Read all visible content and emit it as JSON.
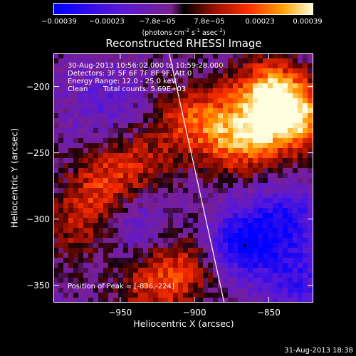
{
  "chart_data": {
    "type": "heatmap",
    "title": "Reconstructed RHESSI Image",
    "xlabel": "Heliocentric X (arcsec)",
    "ylabel": "Heliocentric Y (arcsec)",
    "xlim": [
      -995,
      -820
    ],
    "ylim": [
      -363,
      -175
    ],
    "xticks": [
      "-950",
      "-900",
      "-850"
    ],
    "xtick_values": [
      -950,
      -900,
      -850
    ],
    "yticks": [
      "-200",
      "-250",
      "-300",
      "-350"
    ],
    "ytick_values": [
      -200,
      -250,
      -300,
      -350
    ],
    "colorbar": {
      "range": [
        -0.00039,
        0.00039
      ],
      "tick_labels": [
        "-0.00039",
        "-0.00023",
        "-7.8e-05",
        "7.8e-05",
        "0.00023",
        "0.00039"
      ],
      "tick_values": [
        -0.00039,
        -0.00023,
        -7.8e-05,
        7.8e-05,
        0.00023,
        0.00039
      ],
      "units_prefix": "(photons cm",
      "units_exp1": "-2",
      "units_mid1": " s",
      "units_exp2": "-1",
      "units_mid2": " asec",
      "units_exp3": "-2",
      "units_suffix": ")"
    },
    "annotations": {
      "time_range": "30-Aug-2013 10:56:02.000 to 10:59:28.000",
      "detectors": "Detectors: 3F 5F 6F 7F 8F 9F, Att 0",
      "energy": "Energy Range: 12.0 - 25.0 keV",
      "clean_label": "Clean",
      "total_counts": "Total counts: 5.69E+03",
      "peak": "Position of Peak = [-836,-224]"
    },
    "peak": {
      "x": -836,
      "y": -224
    },
    "limb_line": [
      [
        -917,
        -175
      ],
      [
        -880,
        -363
      ]
    ],
    "marker": {
      "x": -866,
      "y": -320
    },
    "intensity_regions": [
      {
        "x": -850,
        "y": -205,
        "level": 0.85
      },
      {
        "x": -836,
        "y": -224,
        "level": 1.0
      },
      {
        "x": -870,
        "y": -240,
        "level": 0.75
      },
      {
        "x": -900,
        "y": -225,
        "level": 0.6
      },
      {
        "x": -960,
        "y": -275,
        "level": 0.55
      },
      {
        "x": -975,
        "y": -305,
        "level": 0.45
      },
      {
        "x": -925,
        "y": -350,
        "level": 0.55
      },
      {
        "x": -900,
        "y": -330,
        "level": 0.4
      },
      {
        "x": -935,
        "y": -255,
        "level": 0.35
      },
      {
        "x": -870,
        "y": -320,
        "level": -0.8
      },
      {
        "x": -840,
        "y": -300,
        "level": -0.6
      },
      {
        "x": -945,
        "y": -300,
        "level": -0.4
      },
      {
        "x": -960,
        "y": -210,
        "level": -0.3
      },
      {
        "x": -830,
        "y": -345,
        "level": -0.5
      }
    ]
  },
  "timestamp": "31-Aug-2013 18:38"
}
